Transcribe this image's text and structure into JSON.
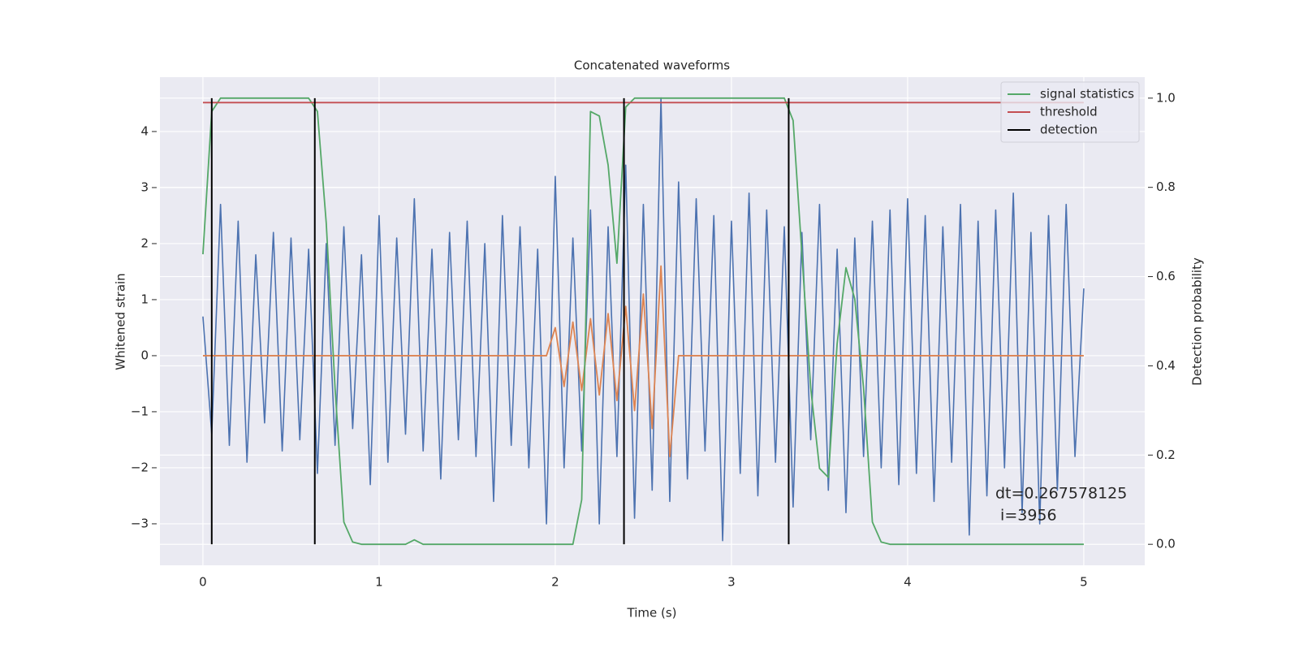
{
  "chart_data": {
    "type": "line",
    "title": "Concatenated waveforms",
    "xlabel": "Time (s)",
    "ylabel": "Whitened strain",
    "y2label": "Detection probability",
    "xlim": [
      -0.244,
      5.346
    ],
    "ylim": [
      -3.74,
      4.97
    ],
    "y2lim": [
      -0.047,
      1.047
    ],
    "xticks": [
      0,
      1,
      2,
      3,
      4,
      5
    ],
    "yticks": [
      {
        "value": -3,
        "label": "−3"
      },
      {
        "value": -2,
        "label": "−2"
      },
      {
        "value": -1,
        "label": "−1"
      },
      0,
      1,
      2,
      3,
      4
    ],
    "y2ticks": [
      {
        "value": 0,
        "label": "0.0"
      },
      0.2,
      0.4,
      0.6,
      0.8,
      {
        "value": 1,
        "label": "1.0"
      }
    ],
    "grid": true,
    "legend": "upper right",
    "x": [
      0,
      0.05,
      0.1,
      0.15,
      0.2,
      0.25,
      0.3,
      0.35,
      0.4,
      0.45,
      0.5,
      0.55,
      0.6,
      0.65,
      0.7,
      0.75,
      0.8,
      0.85,
      0.9,
      0.95,
      1,
      1.05,
      1.1,
      1.15,
      1.2,
      1.25,
      1.3,
      1.35,
      1.4,
      1.45,
      1.5,
      1.55,
      1.6,
      1.65,
      1.7,
      1.75,
      1.8,
      1.85,
      1.9,
      1.95,
      2,
      2.05,
      2.1,
      2.15,
      2.2,
      2.25,
      2.3,
      2.35,
      2.4,
      2.45,
      2.5,
      2.55,
      2.6,
      2.65,
      2.7,
      2.75,
      2.8,
      2.85,
      2.9,
      2.95,
      3,
      3.05,
      3.1,
      3.15,
      3.2,
      3.25,
      3.3,
      3.35,
      3.4,
      3.45,
      3.5,
      3.55,
      3.6,
      3.65,
      3.7,
      3.75,
      3.8,
      3.85,
      3.9,
      3.95,
      4,
      4.05,
      4.1,
      4.15,
      4.2,
      4.25,
      4.3,
      4.35,
      4.4,
      4.45,
      4.5,
      4.55,
      4.6,
      4.65,
      4.7,
      4.75,
      4.8,
      4.85,
      4.9,
      4.95,
      5
    ],
    "series": [
      {
        "color": "#4c72b0",
        "values": [
          0.7,
          -1.4,
          2.7,
          -1.6,
          2.4,
          -1.9,
          1.8,
          -1.2,
          2.2,
          -1.7,
          2.1,
          -1.5,
          1.9,
          -2.1,
          2.0,
          -1.6,
          2.3,
          -1.3,
          1.8,
          -2.3,
          2.5,
          -1.9,
          2.1,
          -1.4,
          2.8,
          -1.7,
          1.9,
          -2.2,
          2.2,
          -1.5,
          2.4,
          -1.8,
          2.0,
          -2.6,
          2.5,
          -1.6,
          2.3,
          -2.0,
          1.9,
          -3.0,
          3.2,
          -2.0,
          2.1,
          -1.7,
          2.6,
          -3.0,
          2.3,
          -1.8,
          3.4,
          -2.9,
          2.7,
          -2.4,
          4.6,
          -2.6,
          3.1,
          -2.2,
          2.8,
          -1.7,
          2.5,
          -3.3,
          2.4,
          -2.1,
          2.9,
          -2.5,
          2.6,
          -1.9,
          2.3,
          -2.7,
          2.2,
          -1.5,
          2.7,
          -2.4,
          1.9,
          -2.8,
          2.1,
          -1.8,
          2.4,
          -2.0,
          2.6,
          -2.3,
          2.8,
          -2.1,
          2.5,
          -2.6,
          2.3,
          -1.9,
          2.7,
          -3.2,
          2.4,
          -2.5,
          2.6,
          -2.0,
          2.9,
          -2.8,
          2.2,
          -3.0,
          2.5,
          -2.4,
          2.7,
          -1.8,
          1.2
        ]
      },
      {
        "color": "#dd8452",
        "values": [
          0,
          0,
          0,
          0,
          0,
          0,
          0,
          0,
          0,
          0,
          0,
          0,
          0,
          0,
          0,
          0,
          0,
          0,
          0,
          0,
          0,
          0,
          0,
          0,
          0,
          0,
          0,
          0,
          0,
          0,
          0,
          0,
          0,
          0,
          0,
          0,
          0,
          0,
          0,
          0,
          0.5,
          -0.55,
          0.6,
          -0.62,
          0.66,
          -0.7,
          0.75,
          -0.8,
          0.88,
          -0.98,
          1.1,
          -1.3,
          1.6,
          -1.8,
          0,
          0,
          0,
          0,
          0,
          0,
          0,
          0,
          0,
          0,
          0,
          0,
          0,
          0,
          0,
          0,
          0,
          0,
          0,
          0,
          0,
          0,
          0,
          0,
          0,
          0,
          0,
          0,
          0,
          0,
          0,
          0,
          0,
          0,
          0,
          0,
          0,
          0,
          0,
          0,
          0,
          0,
          0,
          0,
          0,
          0,
          0
        ]
      },
      {
        "name": "signal statistics",
        "color": "#55a868",
        "axis": "y2",
        "values": [
          0.65,
          0.97,
          1,
          1,
          1,
          1,
          1,
          1,
          1,
          1,
          1,
          1,
          1,
          0.97,
          0.72,
          0.35,
          0.05,
          0.005,
          0,
          0,
          0,
          0,
          0,
          0,
          0.01,
          0,
          0,
          0,
          0,
          0,
          0,
          0,
          0,
          0,
          0,
          0,
          0,
          0,
          0,
          0,
          0,
          0,
          0,
          0.1,
          0.97,
          0.96,
          0.85,
          0.63,
          0.98,
          1,
          1,
          1,
          1,
          1,
          1,
          1,
          1,
          1,
          1,
          1,
          1,
          1,
          1,
          1,
          1,
          1,
          1,
          0.95,
          0.65,
          0.35,
          0.17,
          0.15,
          0.45,
          0.62,
          0.55,
          0.35,
          0.05,
          0.005,
          0,
          0,
          0,
          0,
          0,
          0,
          0,
          0,
          0,
          0,
          0,
          0,
          0,
          0,
          0,
          0,
          0,
          0,
          0,
          0,
          0,
          0,
          0
        ]
      },
      {
        "name": "threshold",
        "color": "#c44e52",
        "axis": "y2",
        "x": [
          0,
          5
        ],
        "values": [
          0.99,
          0.99
        ]
      }
    ],
    "vlines": {
      "name": "detection",
      "color": "#000000",
      "x": [
        0.05,
        0.635,
        2.39,
        3.325
      ],
      "y2": [
        0,
        1
      ]
    },
    "annotations": [
      "dt=0.267578125",
      " i=3956"
    ]
  }
}
